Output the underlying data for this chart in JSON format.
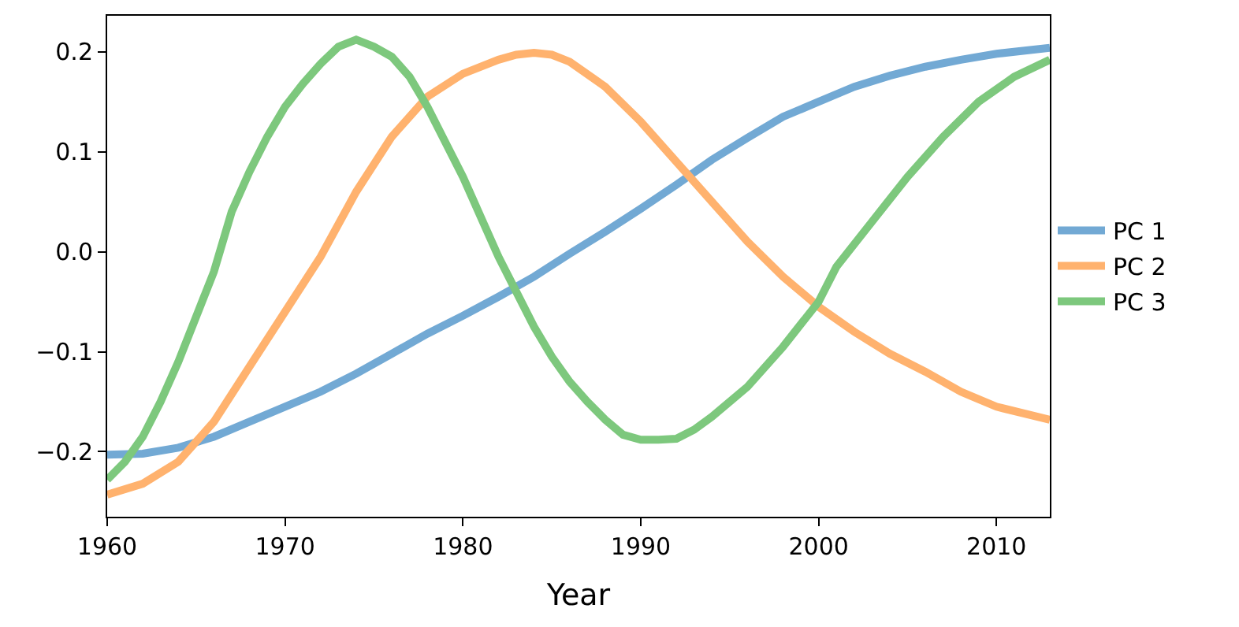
{
  "chart_data": {
    "type": "line",
    "xlabel": "Year",
    "xlim": [
      1960,
      2013
    ],
    "xticks": [
      1960,
      1970,
      1980,
      1990,
      2000,
      2010
    ],
    "ylim": [
      -0.265,
      0.236
    ],
    "yticks": [
      {
        "value": -0.2,
        "label": "−0.2"
      },
      {
        "value": -0.1,
        "label": "−0.1"
      },
      {
        "value": 0.0,
        "label": "0.0"
      },
      0.1,
      0.2
    ],
    "legend": "right",
    "marker": "none",
    "line_style": "solid",
    "series": [
      {
        "name": "PC 1",
        "color": "#72a9d4",
        "x": [
          1960,
          1962,
          1964,
          1966,
          1968,
          1970,
          1972,
          1974,
          1976,
          1978,
          1980,
          1982,
          1984,
          1986,
          1988,
          1990,
          1992,
          1994,
          1996,
          1998,
          2000,
          2002,
          2004,
          2006,
          2008,
          2010,
          2013
        ],
        "values": [
          -0.203,
          -0.202,
          -0.196,
          -0.185,
          -0.17,
          -0.155,
          -0.14,
          -0.122,
          -0.102,
          -0.082,
          -0.064,
          -0.045,
          -0.025,
          -0.002,
          0.02,
          0.043,
          0.067,
          0.092,
          0.114,
          0.135,
          0.15,
          0.165,
          0.176,
          0.185,
          0.192,
          0.198,
          0.204
        ]
      },
      {
        "name": "PC 2",
        "color": "#ffb26e",
        "x": [
          1960,
          1962,
          1964,
          1966,
          1968,
          1970,
          1972,
          1974,
          1976,
          1978,
          1980,
          1982,
          1983,
          1984,
          1985,
          1986,
          1988,
          1990,
          1992,
          1994,
          1996,
          1998,
          2000,
          2002,
          2004,
          2006,
          2008,
          2010,
          2013
        ],
        "values": [
          -0.243,
          -0.232,
          -0.21,
          -0.17,
          -0.115,
          -0.06,
          -0.005,
          0.06,
          0.115,
          0.155,
          0.178,
          0.192,
          0.197,
          0.199,
          0.197,
          0.19,
          0.165,
          0.13,
          0.09,
          0.05,
          0.01,
          -0.025,
          -0.055,
          -0.08,
          -0.102,
          -0.12,
          -0.14,
          -0.155,
          -0.168
        ]
      },
      {
        "name": "PC 3",
        "color": "#7dc87d",
        "x": [
          1960,
          1961,
          1962,
          1963,
          1964,
          1965,
          1966,
          1967,
          1968,
          1969,
          1970,
          1971,
          1972,
          1973,
          1974,
          1975,
          1976,
          1977,
          1978,
          1979,
          1980,
          1981,
          1982,
          1983,
          1984,
          1985,
          1986,
          1987,
          1988,
          1989,
          1990,
          1991,
          1992,
          1993,
          1994,
          1996,
          1998,
          2000,
          2001,
          2003,
          2005,
          2007,
          2009,
          2011,
          2013
        ],
        "values": [
          -0.228,
          -0.21,
          -0.185,
          -0.15,
          -0.11,
          -0.065,
          -0.02,
          0.04,
          0.08,
          0.115,
          0.145,
          0.168,
          0.188,
          0.205,
          0.212,
          0.205,
          0.195,
          0.175,
          0.145,
          0.11,
          0.075,
          0.035,
          -0.005,
          -0.04,
          -0.075,
          -0.105,
          -0.13,
          -0.15,
          -0.168,
          -0.183,
          -0.188,
          -0.188,
          -0.187,
          -0.178,
          -0.165,
          -0.135,
          -0.095,
          -0.05,
          -0.015,
          0.03,
          0.075,
          0.115,
          0.15,
          0.175,
          0.192
        ]
      }
    ]
  }
}
